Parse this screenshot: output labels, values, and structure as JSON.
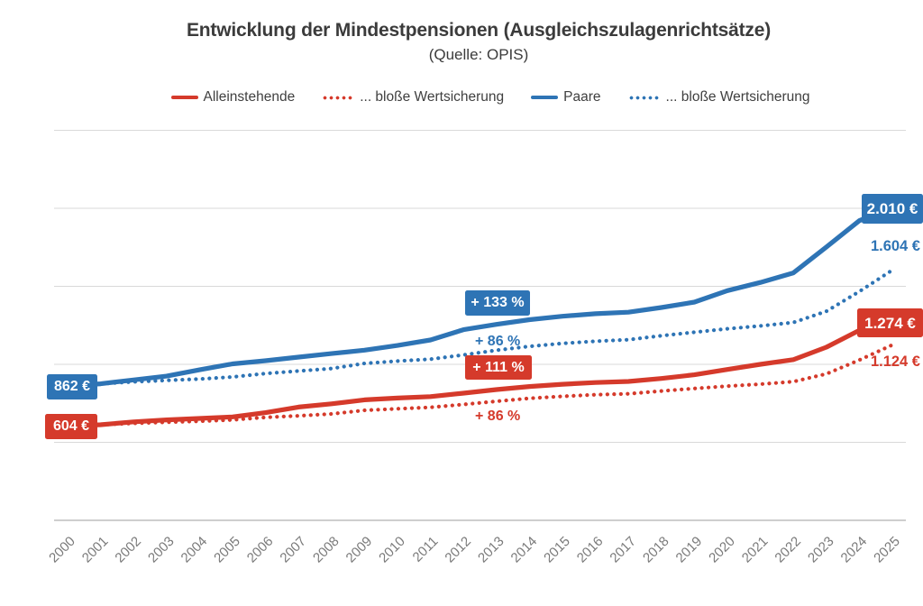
{
  "header": {
    "title": "Entwicklung der Mindestpensionen (Ausgleichszulagenrichtsätze)",
    "subtitle": "(Quelle: OPIS)"
  },
  "colors": {
    "red": "#d53a2b",
    "blue": "#2e74b5",
    "gridline": "#d9d9d9",
    "axis": "#bdbdbd",
    "axis_label_text": "#7a7a7a",
    "title_text": "#3b3b3b",
    "legend_text": "#3f3f3f"
  },
  "legend": {
    "items": [
      {
        "id": "alleinstehende",
        "label": "Alleinstehende",
        "style": "solid",
        "color": "red"
      },
      {
        "id": "alleinstehende-wertsicherung",
        "label": "... bloße Wertsicherung",
        "style": "dotted",
        "color": "red"
      },
      {
        "id": "paare",
        "label": "Paare",
        "style": "solid",
        "color": "blue"
      },
      {
        "id": "paare-wertsicherung",
        "label": "... bloße Wertsicherung",
        "style": "dotted",
        "color": "blue"
      }
    ]
  },
  "chart_data": {
    "type": "line",
    "title": "Entwicklung der Mindestpensionen (Ausgleichszulagenrichtsätze)",
    "subtitle": "(Quelle: OPIS)",
    "x": [
      2000,
      2001,
      2002,
      2003,
      2004,
      2005,
      2006,
      2007,
      2008,
      2009,
      2010,
      2011,
      2012,
      2013,
      2014,
      2015,
      2016,
      2017,
      2018,
      2019,
      2020,
      2021,
      2022,
      2023,
      2024,
      2025
    ],
    "ylim": [
      0,
      2500
    ],
    "gridline_step": 500,
    "grid": true,
    "legend_position": "top",
    "y_axis_labels_visible": false,
    "series": [
      {
        "id": "paare-wertsicherung",
        "name": "Paare ... bloße Wertsicherung",
        "style": "dotted",
        "color": "blue",
        "values": [
          862,
          875,
          888,
          897,
          906,
          919,
          941,
          957,
          973,
          1006,
          1021,
          1033,
          1060,
          1090,
          1115,
          1134,
          1148,
          1158,
          1183,
          1206,
          1228,
          1246,
          1268,
          1340,
          1467,
          1604
        ]
      },
      {
        "id": "alleinstehende-wertsicherung",
        "name": "Alleinstehende ... bloße Wertsicherung",
        "style": "dotted",
        "color": "red",
        "values": [
          604,
          613,
          622,
          629,
          635,
          644,
          660,
          670,
          682,
          705,
          715,
          724,
          743,
          763,
          782,
          795,
          805,
          811,
          829,
          845,
          860,
          873,
          889,
          939,
          1028,
          1124
        ]
      },
      {
        "id": "paare",
        "name": "Paare",
        "style": "solid",
        "color": "blue",
        "values": [
          862,
          875,
          900,
          924,
          965,
          1003,
          1023,
          1046,
          1069,
          1091,
          1121,
          1156,
          1222,
          1256,
          1286,
          1308,
          1324,
          1334,
          1364,
          1399,
          1472,
          1525,
          1586,
          1752,
          1921,
          2010
        ]
      },
      {
        "id": "alleinstehende",
        "name": "Alleinstehende",
        "style": "solid",
        "color": "red",
        "values": [
          604,
          613,
          631,
          644,
          653,
          663,
          690,
          726,
          747,
          772,
          784,
          793,
          815,
          838,
          858,
          872,
          883,
          890,
          909,
          933,
          967,
          1000,
          1030,
          1110,
          1218,
          1274
        ]
      }
    ],
    "annotations": [
      {
        "text": "862 €",
        "series": "Paare",
        "position": "start",
        "type": "box"
      },
      {
        "text": "604 €",
        "series": "Alleinstehende",
        "position": "start",
        "type": "box"
      },
      {
        "text": "2.010 €",
        "series": "Paare",
        "position": "end",
        "type": "box"
      },
      {
        "text": "1.604 €",
        "series": "Paare ... bloße Wertsicherung",
        "position": "end",
        "type": "text"
      },
      {
        "text": "1.274 €",
        "series": "Alleinstehende",
        "position": "end",
        "type": "box"
      },
      {
        "text": "1.124 €",
        "series": "Alleinstehende ... bloße Wertsicherung",
        "position": "end",
        "type": "text"
      },
      {
        "text": "+ 133 %",
        "series": "Paare",
        "position": "middle",
        "type": "box"
      },
      {
        "text": "+ 86 %",
        "series": "Paare ... bloße Wertsicherung",
        "position": "middle",
        "type": "text"
      },
      {
        "text": "+ 111 %",
        "series": "Alleinstehende",
        "position": "middle",
        "type": "box"
      },
      {
        "text": "+ 86 %",
        "series": "Alleinstehende ... bloße Wertsicherung",
        "position": "middle",
        "type": "text"
      }
    ]
  }
}
